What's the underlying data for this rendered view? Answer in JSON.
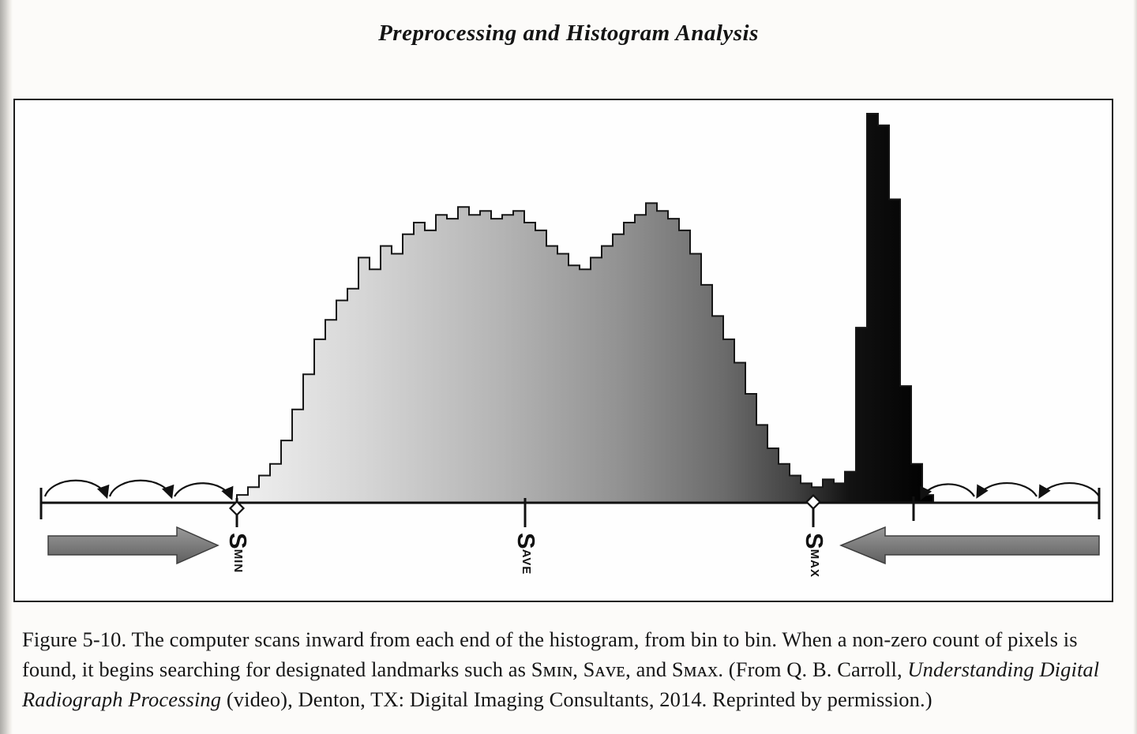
{
  "page": {
    "running_head": "Preprocessing and Histogram Analysis"
  },
  "figure": {
    "landmarks": {
      "smin": {
        "main": "S",
        "sub": "MIN"
      },
      "save": {
        "main": "S",
        "sub": "AVE"
      },
      "smax": {
        "main": "S",
        "sub": "MAX"
      }
    }
  },
  "chart_data": {
    "type": "bar",
    "x_tick_labels": [
      "Smin",
      "Save",
      "Smax"
    ],
    "ylim": [
      0,
      1
    ],
    "values": [
      0.02,
      0.04,
      0.07,
      0.1,
      0.16,
      0.24,
      0.33,
      0.42,
      0.47,
      0.52,
      0.55,
      0.63,
      0.6,
      0.66,
      0.64,
      0.69,
      0.72,
      0.7,
      0.74,
      0.73,
      0.76,
      0.74,
      0.75,
      0.73,
      0.74,
      0.75,
      0.72,
      0.7,
      0.66,
      0.64,
      0.61,
      0.6,
      0.63,
      0.66,
      0.69,
      0.72,
      0.74,
      0.77,
      0.75,
      0.73,
      0.7,
      0.64,
      0.56,
      0.48,
      0.42,
      0.36,
      0.28,
      0.2,
      0.14,
      0.1,
      0.07,
      0.05,
      0.04,
      0.06,
      0.05,
      0.08,
      0.45,
      1.0,
      0.97,
      0.78,
      0.3,
      0.1,
      0.02
    ],
    "annotations": [
      "curved hop arrows scan inward from left end toward Smin",
      "curved hop arrows scan inward from right end toward Smax",
      "large block arrow pointing right at left end",
      "large block arrow pointing left at right end",
      "open diamond markers at Smin and Smax"
    ]
  },
  "caption": {
    "part1": "Figure 5-10. The computer scans inward from each end of the histogram, from bin to bin. When a non-zero count of pixels is found, it begins searching for designated landmarks such as Sᴍɪɴ, Sᴀᴠᴇ, and Sᴍᴀx. (From Q. B. Carroll, ",
    "italic": "Understanding Digital Radiograph Processing",
    "part2": " (video), Denton, TX: Digital Imaging Consultants, 2014. Reprinted by permission.)"
  }
}
